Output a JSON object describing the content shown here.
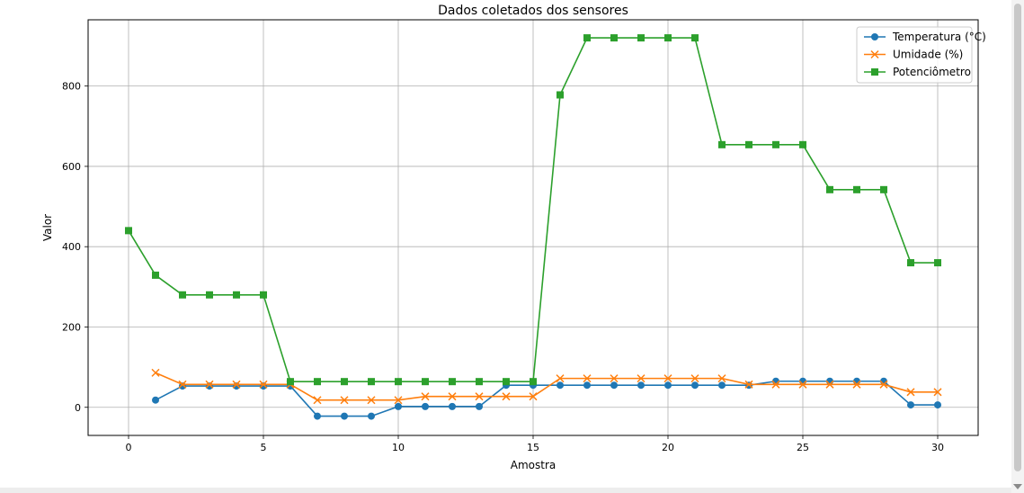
{
  "chart_data": {
    "type": "line",
    "title": "Dados coletados dos sensores",
    "xlabel": "Amostra",
    "ylabel": "Valor",
    "xlim": [
      -1.5,
      31.5
    ],
    "ylim": [
      -70,
      965
    ],
    "xticks": [
      0,
      5,
      10,
      15,
      20,
      25,
      30
    ],
    "yticks": [
      0,
      200,
      400,
      600,
      800
    ],
    "grid": true,
    "legend_position": "top-right",
    "series": [
      {
        "name": "Temperatura (°C)",
        "color": "#1f77b4",
        "marker": "circle",
        "x": [
          1,
          2,
          3,
          4,
          5,
          6,
          7,
          8,
          9,
          10,
          11,
          12,
          13,
          14,
          15,
          16,
          17,
          18,
          19,
          20,
          21,
          22,
          23,
          24,
          25,
          26,
          27,
          28,
          29,
          30
        ],
        "y": [
          18,
          53,
          53,
          53,
          53,
          53,
          -22,
          -22,
          -22,
          2,
          2,
          2,
          2,
          55,
          55,
          55,
          55,
          55,
          55,
          55,
          55,
          55,
          55,
          65,
          65,
          65,
          65,
          65,
          6,
          6
        ]
      },
      {
        "name": "Umidade (%)",
        "color": "#ff7f0e",
        "marker": "x",
        "x": [
          1,
          2,
          3,
          4,
          5,
          6,
          7,
          8,
          9,
          10,
          11,
          12,
          13,
          14,
          15,
          16,
          17,
          18,
          19,
          20,
          21,
          22,
          23,
          24,
          25,
          26,
          27,
          28,
          29,
          30
        ],
        "y": [
          86,
          57,
          57,
          57,
          57,
          57,
          18,
          18,
          18,
          18,
          27,
          27,
          27,
          27,
          27,
          72,
          72,
          72,
          72,
          72,
          72,
          72,
          57,
          57,
          57,
          57,
          57,
          57,
          38,
          38
        ]
      },
      {
        "name": "Potenciômetro",
        "color": "#2ca02c",
        "marker": "square",
        "x": [
          0,
          1,
          2,
          3,
          4,
          5,
          6,
          7,
          8,
          9,
          10,
          11,
          12,
          13,
          14,
          15,
          16,
          17,
          18,
          19,
          20,
          21,
          22,
          23,
          24,
          25,
          26,
          27,
          28,
          29,
          30
        ],
        "y": [
          440,
          329,
          280,
          280,
          280,
          280,
          64,
          64,
          64,
          64,
          64,
          64,
          64,
          64,
          64,
          64,
          778,
          920,
          920,
          920,
          920,
          920,
          654,
          654,
          654,
          654,
          542,
          542,
          542,
          360,
          360
        ]
      }
    ]
  }
}
